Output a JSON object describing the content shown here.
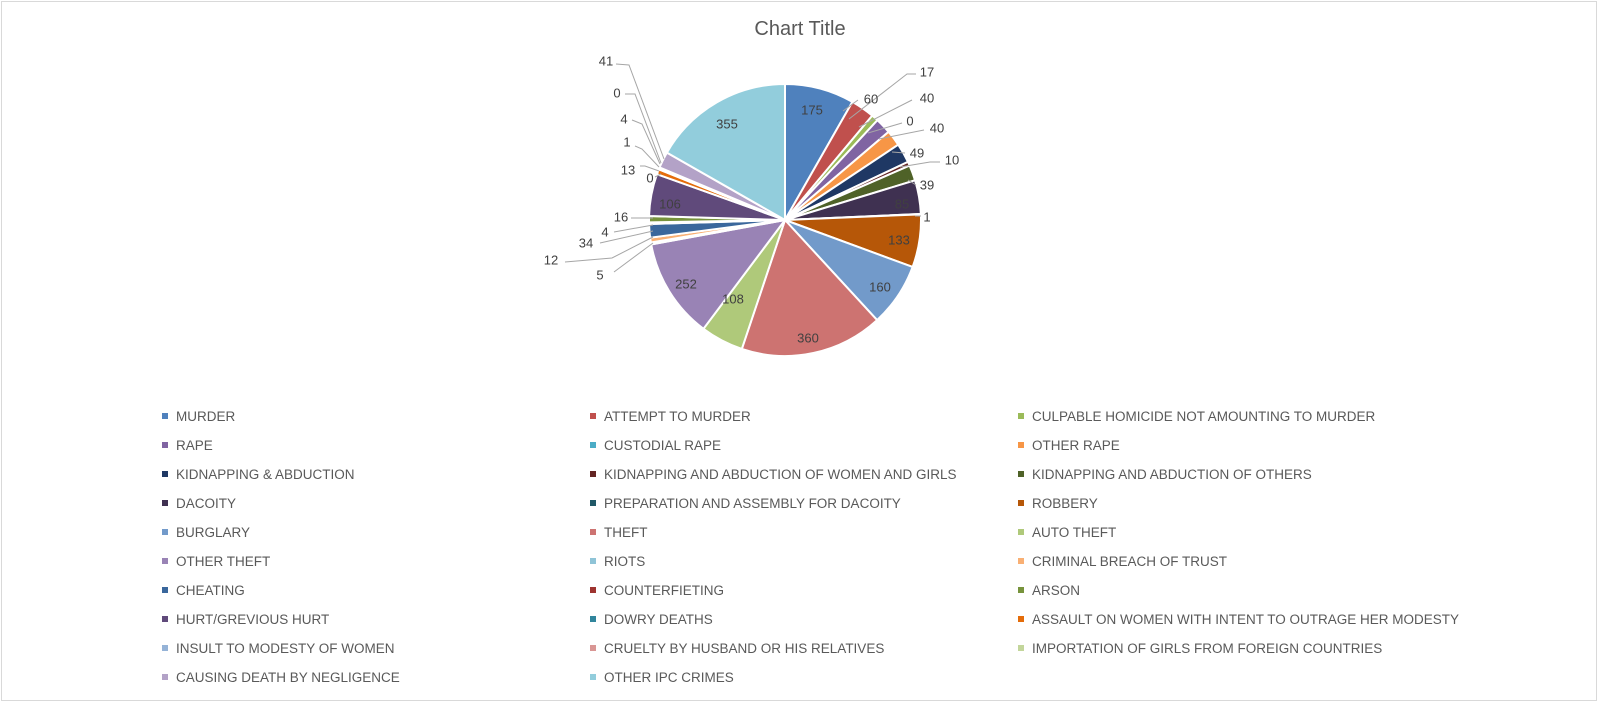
{
  "chart_data": {
    "type": "pie",
    "title": "Chart Title",
    "legend_position": "bottom",
    "categories": [
      "MURDER",
      "ATTEMPT TO MURDER",
      "CULPABLE HOMICIDE NOT AMOUNTING TO MURDER",
      "RAPE",
      "CUSTODIAL RAPE",
      "OTHER RAPE",
      "KIDNAPPING & ABDUCTION",
      "KIDNAPPING AND ABDUCTION OF WOMEN AND GIRLS",
      "KIDNAPPING AND ABDUCTION OF OTHERS",
      "DACOITY",
      "PREPARATION AND ASSEMBLY FOR DACOITY",
      "ROBBERY",
      "BURGLARY",
      "THEFT",
      "AUTO THEFT",
      "OTHER THEFT",
      "RIOTS",
      "CRIMINAL BREACH OF TRUST",
      "CHEATING",
      "COUNTERFIETING",
      "ARSON",
      "HURT/GREVIOUS HURT",
      "DOWRY DEATHS",
      "ASSAULT ON WOMEN WITH INTENT TO OUTRAGE HER MODESTY",
      "INSULT TO MODESTY OF WOMEN",
      "CRUELTY BY HUSBAND OR HIS RELATIVES",
      "IMPORTATION OF GIRLS FROM FOREIGN COUNTRIES",
      "CAUSING DEATH BY NEGLIGENCE",
      "OTHER IPC CRIMES"
    ],
    "values": [
      175,
      60,
      17,
      40,
      0,
      40,
      49,
      10,
      39,
      85,
      1,
      133,
      160,
      360,
      108,
      252,
      5,
      12,
      34,
      4,
      16,
      106,
      0,
      13,
      1,
      4,
      0,
      41,
      355
    ],
    "value_labels": [
      "175",
      "60",
      "17",
      "40",
      "0",
      "40",
      "49",
      "10",
      "39",
      "85",
      "1",
      "133",
      "160",
      "360",
      "108",
      "252",
      "5",
      "12",
      "34",
      "4",
      "16",
      "106",
      "0",
      "13",
      "1",
      "4",
      "0",
      "41",
      "355"
    ],
    "colors": [
      "#4f81bd",
      "#c0504d",
      "#9bbb59",
      "#8064a2",
      "#4bacc6",
      "#f79646",
      "#1f3864",
      "#632523",
      "#4f6228",
      "#3f3151",
      "#205867",
      "#b65708",
      "#729aca",
      "#cd7371",
      "#afc97a",
      "#9983b5",
      "#8fc4d7",
      "#f9b074",
      "#3a679c",
      "#9e3330",
      "#77933c",
      "#604a7b",
      "#31859c",
      "#e46c0a",
      "#95b3d7",
      "#d99694",
      "#c3d69b",
      "#b3a2c7",
      "#92cddc"
    ]
  }
}
